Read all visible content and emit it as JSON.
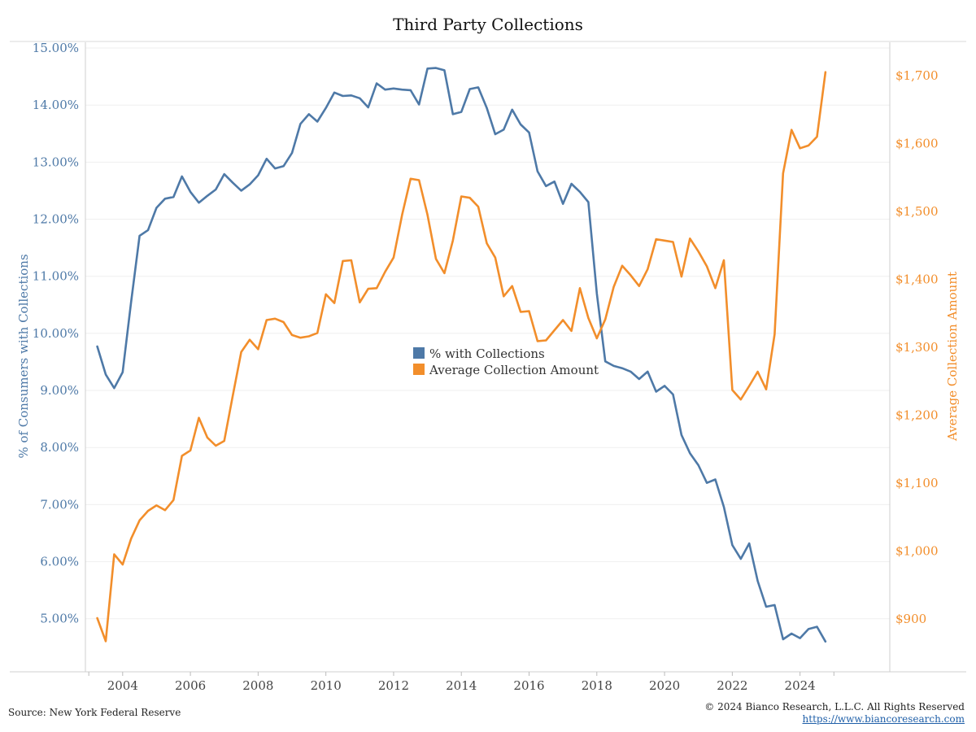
{
  "chart_data": {
    "type": "line",
    "title": "Third Party Collections",
    "ylabel_left": "% of Consumers with Collections",
    "ylabel_right": "Average Collection Amount",
    "x_ticks": [
      "2004",
      "2006",
      "2008",
      "2010",
      "2012",
      "2014",
      "2016",
      "2018",
      "2020",
      "2022",
      "2024"
    ],
    "y_left_ticks": [
      "5.00%",
      "6.00%",
      "7.00%",
      "8.00%",
      "9.00%",
      "10.00%",
      "11.00%",
      "12.00%",
      "13.00%",
      "14.00%",
      "15.00%"
    ],
    "y_right_ticks": [
      "$900",
      "$1,000",
      "$1,100",
      "$1,200",
      "$1,300",
      "$1,400",
      "$1,500",
      "$1,600",
      "$1,700"
    ],
    "ylim_left": [
      4.07,
      15.1
    ],
    "ylim_right": [
      822,
      1749
    ],
    "xlim": [
      2002.9,
      2026.65
    ],
    "grid": "horizontal",
    "legend_position": "center",
    "colors": {
      "pct_series": "#4e79a7",
      "amount_series": "#f28e2b"
    },
    "series": [
      {
        "name": "% with Collections",
        "axis": "left",
        "x": [
          2003.25,
          2003.5,
          2003.75,
          2004.0,
          2004.25,
          2004.5,
          2004.75,
          2005.0,
          2005.25,
          2005.5,
          2005.75,
          2006.0,
          2006.25,
          2006.5,
          2006.75,
          2007.0,
          2007.25,
          2007.5,
          2007.75,
          2008.0,
          2008.25,
          2008.5,
          2008.75,
          2009.0,
          2009.25,
          2009.5,
          2009.75,
          2010.0,
          2010.25,
          2010.5,
          2010.75,
          2011.0,
          2011.25,
          2011.5,
          2011.75,
          2012.0,
          2012.25,
          2012.5,
          2012.75,
          2013.0,
          2013.25,
          2013.5,
          2013.75,
          2014.0,
          2014.25,
          2014.5,
          2014.75,
          2015.0,
          2015.25,
          2015.5,
          2015.75,
          2016.0,
          2016.25,
          2016.5,
          2016.75,
          2017.0,
          2017.25,
          2017.5,
          2017.75,
          2018.0,
          2018.25,
          2018.5,
          2018.75,
          2019.0,
          2019.25,
          2019.5,
          2019.75,
          2020.0,
          2020.25,
          2020.5,
          2020.75,
          2021.0,
          2021.25,
          2021.5,
          2021.75,
          2022.0,
          2022.25,
          2022.5,
          2022.75,
          2023.0,
          2023.25,
          2023.5,
          2023.75,
          2024.0,
          2024.25,
          2024.5,
          2024.75
        ],
        "values": [
          9.77,
          9.28,
          9.04,
          9.32,
          10.55,
          11.71,
          11.81,
          12.2,
          12.36,
          12.39,
          12.75,
          12.48,
          12.29,
          12.41,
          12.52,
          12.79,
          12.64,
          12.5,
          12.61,
          12.77,
          13.06,
          12.89,
          12.93,
          13.16,
          13.67,
          13.84,
          13.71,
          13.95,
          14.22,
          14.16,
          14.17,
          14.12,
          13.96,
          14.38,
          14.27,
          14.29,
          14.27,
          14.26,
          14.01,
          14.64,
          14.65,
          14.61,
          13.84,
          13.88,
          14.28,
          14.31,
          13.95,
          13.49,
          13.57,
          13.92,
          13.66,
          13.52,
          12.84,
          12.58,
          12.66,
          12.27,
          12.62,
          12.48,
          12.3,
          10.7,
          9.51,
          9.43,
          9.39,
          9.33,
          9.2,
          9.33,
          8.98,
          9.08,
          8.93,
          8.22,
          7.9,
          7.69,
          7.38,
          7.44,
          6.96,
          6.29,
          6.05,
          6.32,
          5.66,
          5.21,
          5.24,
          4.64,
          4.74,
          4.66,
          4.82,
          4.86,
          4.6
        ]
      },
      {
        "name": "Average Collection Amount",
        "axis": "right",
        "x": [
          2003.25,
          2003.5,
          2003.75,
          2004.0,
          2004.25,
          2004.5,
          2004.75,
          2005.0,
          2005.25,
          2005.5,
          2005.75,
          2006.0,
          2006.25,
          2006.5,
          2006.75,
          2007.0,
          2007.25,
          2007.5,
          2007.75,
          2008.0,
          2008.25,
          2008.5,
          2008.75,
          2009.0,
          2009.25,
          2009.5,
          2009.75,
          2010.0,
          2010.25,
          2010.5,
          2010.75,
          2011.0,
          2011.25,
          2011.5,
          2011.75,
          2012.0,
          2012.25,
          2012.5,
          2012.75,
          2013.0,
          2013.25,
          2013.5,
          2013.75,
          2014.0,
          2014.25,
          2014.5,
          2014.75,
          2015.0,
          2015.25,
          2015.5,
          2015.75,
          2016.0,
          2016.25,
          2016.5,
          2016.75,
          2017.0,
          2017.25,
          2017.5,
          2017.75,
          2018.0,
          2018.25,
          2018.5,
          2018.75,
          2019.0,
          2019.25,
          2019.5,
          2019.75,
          2020.0,
          2020.25,
          2020.5,
          2020.75,
          2021.0,
          2021.25,
          2021.5,
          2021.75,
          2022.0,
          2022.25,
          2022.5,
          2022.75,
          2023.0,
          2023.25,
          2023.5,
          2023.75,
          2024.0,
          2024.25,
          2024.5,
          2024.75
        ],
        "values": [
          901,
          867,
          995,
          980,
          1018,
          1045,
          1059,
          1067,
          1060,
          1075,
          1140,
          1148,
          1196,
          1167,
          1155,
          1162,
          1228,
          1293,
          1311,
          1297,
          1340,
          1342,
          1337,
          1318,
          1314,
          1316,
          1321,
          1378,
          1365,
          1427,
          1428,
          1366,
          1386,
          1387,
          1411,
          1432,
          1495,
          1548,
          1546,
          1495,
          1430,
          1409,
          1457,
          1522,
          1520,
          1507,
          1453,
          1432,
          1375,
          1390,
          1352,
          1353,
          1309,
          1310,
          1325,
          1340,
          1324,
          1387,
          1343,
          1313,
          1341,
          1389,
          1420,
          1406,
          1390,
          1415,
          1459,
          1457,
          1455,
          1404,
          1460,
          1441,
          1419,
          1387,
          1428,
          1237,
          1223,
          1243,
          1264,
          1238,
          1319,
          1556,
          1620,
          1593,
          1597,
          1610,
          1705
        ]
      }
    ]
  },
  "legend": {
    "pct_label": "% with Collections",
    "amount_label": "Average Collection Amount"
  },
  "footer": {
    "source": "Source: New York Federal Reserve",
    "copyright": "© 2024 Bianco Research, L.L.C. All Rights Reserved",
    "url": "https://www.biancoresearch.com"
  }
}
